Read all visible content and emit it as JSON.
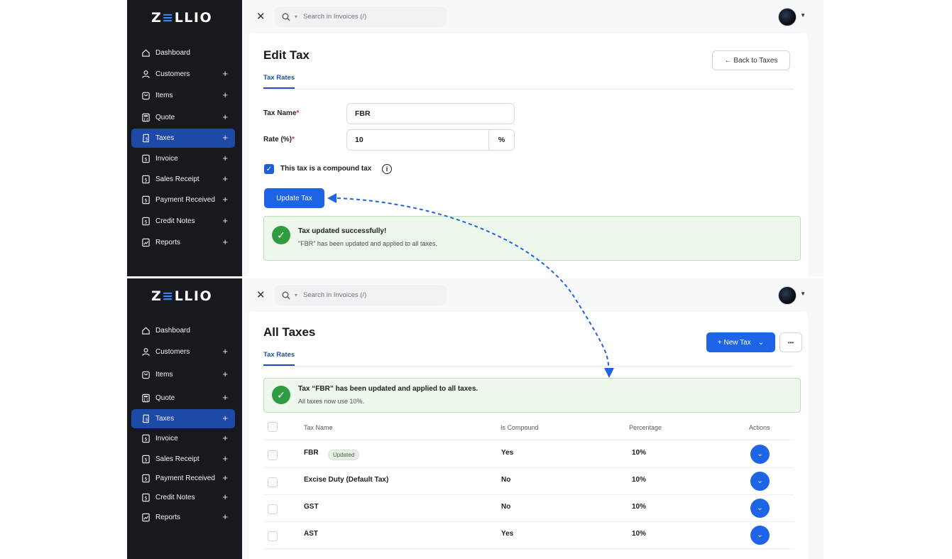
{
  "brand": {
    "logo_pre": "Z",
    "logo_hl": "≡",
    "logo_post": "LLIO"
  },
  "sidebar": {
    "items": [
      {
        "label": "Dashboard",
        "icon": "home-icon",
        "plus": ""
      },
      {
        "label": "Customers",
        "icon": "user-icon",
        "plus": "+"
      },
      {
        "label": "Items",
        "icon": "bag-icon",
        "plus": "+"
      },
      {
        "label": "Quote",
        "icon": "calculator-icon",
        "plus": "+"
      },
      {
        "label": "Taxes",
        "icon": "tax-icon",
        "plus": "+"
      },
      {
        "label": "Invoice",
        "icon": "dollar-doc-icon",
        "plus": "+"
      },
      {
        "label": "Sales Receipt",
        "icon": "dollar-doc-icon",
        "plus": "+"
      },
      {
        "label": "Payment Received",
        "icon": "dollar-doc-icon",
        "plus": "+"
      },
      {
        "label": "Credit Notes",
        "icon": "dollar-doc-icon",
        "plus": "+"
      },
      {
        "label": "Reports",
        "icon": "chart-doc-icon",
        "plus": "+"
      }
    ]
  },
  "topbar": {
    "close": "✕",
    "search_placeholder": "Search in Invoices (/)",
    "caret": "▾"
  },
  "edit": {
    "title": "Edit Tax",
    "tab": "Tax Rates",
    "back_button": "← Back to Taxes",
    "tax_name_label": "Tax Name",
    "rate_label": "Rate (%)",
    "required": "*",
    "tax_name_value": "FBR",
    "rate_value": "10",
    "rate_suffix": "%",
    "compound_label": "This tax is a compound tax",
    "compound_checked": true,
    "info": "i",
    "update_button": "Update Tax",
    "alert_title": "Tax updated successfully!",
    "alert_desc": "\"FBR\" has been updated and applied to all taxes."
  },
  "list": {
    "title": "All Taxes",
    "tab": "Tax Rates",
    "new_button": "+  New Tax",
    "new_caret": "⌄",
    "more": "•••",
    "alert_title": "Tax “FBR” has been updated and applied to all taxes.",
    "alert_desc": "All taxes now use 10%.",
    "columns": {
      "name": "Tax Name",
      "compound": "Is Compound",
      "percentage": "Percentage",
      "actions": "Actions"
    },
    "rows": [
      {
        "name": "FBR",
        "badge": "Updated",
        "compound": "Yes",
        "percentage": "10%"
      },
      {
        "name": "Excise Duty (Default Tax)",
        "badge": "",
        "compound": "No",
        "percentage": "10%"
      },
      {
        "name": "GST",
        "badge": "",
        "compound": "No",
        "percentage": "10%"
      },
      {
        "name": "AST",
        "badge": "",
        "compound": "Yes",
        "percentage": "10%"
      }
    ]
  },
  "colors": {
    "accent": "#1e64e6",
    "sidebar": "#17191f",
    "active": "#1c4aa6",
    "success": "#2f9c41"
  }
}
